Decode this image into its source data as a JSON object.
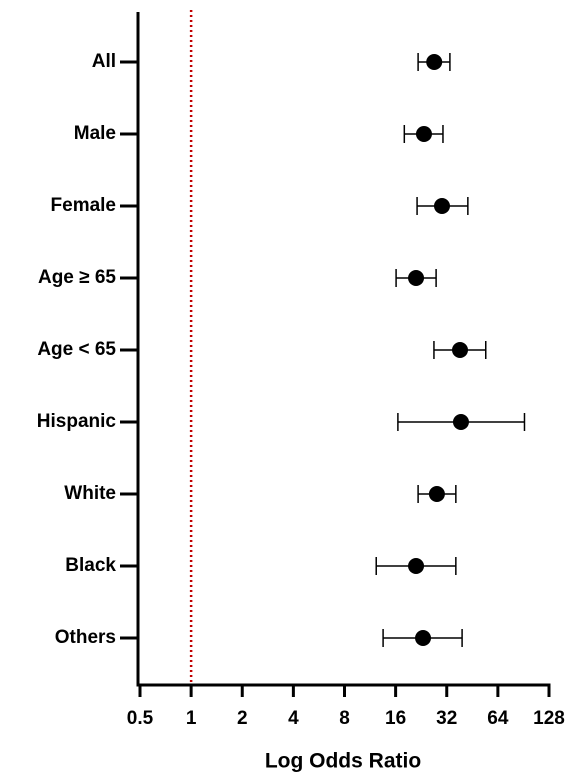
{
  "chart_data": {
    "type": "forest",
    "x_label": "Log Odds Ratio",
    "x_scale": "log2",
    "categories": [
      "All",
      "Male",
      "Female",
      "Age ≥ 65",
      "Age < 65",
      "Hispanic",
      "White",
      "Black",
      "Others"
    ],
    "values": [
      27,
      23.5,
      30,
      21.1,
      38.3,
      38.8,
      28,
      21.1,
      23.2
    ],
    "lower": [
      21.7,
      18,
      21.4,
      16.1,
      26.9,
      16.5,
      21.7,
      12.3,
      13.5
    ],
    "upper": [
      33.4,
      30.4,
      42.6,
      27.7,
      54.3,
      91.8,
      36.2,
      36.2,
      39.4
    ],
    "xlim": [
      0.5,
      128
    ],
    "xticks": [
      0.5,
      1,
      2,
      4,
      8,
      16,
      32,
      64,
      128
    ],
    "reference_line": 1,
    "reference_color": "#c00000",
    "color": "#000000"
  }
}
